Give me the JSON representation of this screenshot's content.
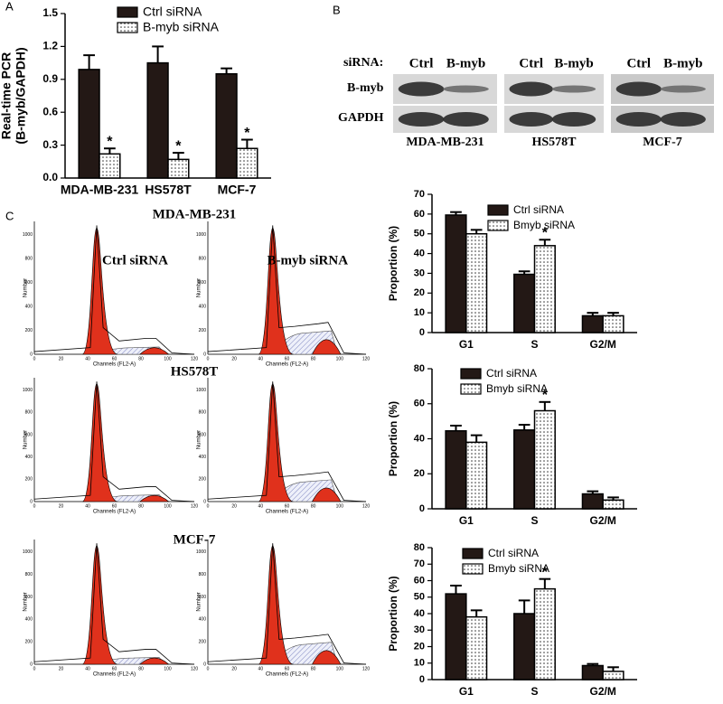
{
  "panel_labels": [
    "A",
    "B",
    "C"
  ],
  "chart_data": [
    {
      "type": "bar",
      "y_label": [
        "Real-time PCR",
        "(B-myb/GAPDH)"
      ],
      "categories": [
        "MDA-MB-231",
        "HS578T",
        "MCF-7"
      ],
      "ylim": [
        0,
        1.5
      ],
      "yticks": [
        {
          "value": 0,
          "label": "0.0"
        },
        0.3,
        0.6,
        0.9,
        1.2,
        {
          "value": 1.5,
          "label": "1.5"
        }
      ],
      "legend": "top",
      "series": [
        {
          "name": "Ctrl siRNA",
          "color": "#231815",
          "values": [
            0.99,
            1.05,
            0.95
          ],
          "errors": [
            0.13,
            0.15,
            0.05
          ]
        },
        {
          "name": "B-myb siRNA",
          "color": "dotted",
          "values": [
            0.22,
            0.17,
            0.27
          ],
          "errors": [
            0.05,
            0.06,
            0.08
          ],
          "markers": [
            "*",
            "*",
            "*"
          ]
        }
      ]
    },
    {
      "type": "bar",
      "y_label": [
        "Proportion (%)"
      ],
      "categories": [
        "G1",
        "S",
        "G2/M"
      ],
      "ylim": [
        0,
        70
      ],
      "yticks": [
        0,
        10,
        20,
        30,
        40,
        50,
        60,
        70
      ],
      "legend": "top",
      "series": [
        {
          "name": "Ctrl siRNA",
          "color": "#231815",
          "values": [
            59.5,
            29.5,
            8.5
          ],
          "errors": [
            1.5,
            1.5,
            1.5
          ]
        },
        {
          "name": "Bmyb siRNA",
          "color": "dotted",
          "values": [
            50,
            44,
            8.5
          ],
          "errors": [
            2,
            3,
            1.5
          ],
          "markers": [
            null,
            "*",
            null
          ]
        }
      ]
    },
    {
      "type": "bar",
      "y_label": [
        "Proportion (%)"
      ],
      "categories": [
        "G1",
        "S",
        "G2/M"
      ],
      "ylim": [
        0,
        80
      ],
      "yticks": [
        0,
        20,
        40,
        60,
        80
      ],
      "legend": "top",
      "series": [
        {
          "name": "Ctrl siRNA",
          "color": "#231815",
          "values": [
            44.5,
            45,
            8.5
          ],
          "errors": [
            3,
            3,
            1.5
          ]
        },
        {
          "name": "Bmyb siRNA",
          "color": "dotted",
          "values": [
            38,
            56,
            5
          ],
          "errors": [
            4,
            5,
            1.5
          ],
          "markers": [
            null,
            "*",
            null
          ]
        }
      ]
    },
    {
      "type": "bar",
      "y_label": [
        "Proportion (%)"
      ],
      "categories": [
        "G1",
        "S",
        "G2/M"
      ],
      "ylim": [
        0,
        80
      ],
      "yticks": [
        0,
        10,
        20,
        30,
        40,
        50,
        60,
        70,
        80
      ],
      "legend": "top",
      "series": [
        {
          "name": "Ctrl siRNA",
          "color": "#231815",
          "values": [
            52,
            40,
            8.5
          ],
          "errors": [
            5,
            8,
            1
          ]
        },
        {
          "name": "Bmyb siRNA",
          "color": "dotted",
          "values": [
            38,
            55,
            5
          ],
          "errors": [
            4,
            6,
            2.5
          ],
          "markers": [
            null,
            "*",
            null
          ]
        }
      ]
    }
  ],
  "blot": {
    "row_header": "siRNA:",
    "lanes": [
      "Ctrl",
      "B-myb"
    ],
    "rows": [
      "B-myb",
      "GAPDH"
    ],
    "cells": [
      "MDA-MB-231",
      "HS578T",
      "MCF-7"
    ]
  },
  "flow": {
    "rows": [
      "MDA-MB-231",
      "HS578T",
      "MCF-7"
    ],
    "conditions": [
      "Ctrl siRNA",
      "B-myb siRNA"
    ],
    "x_label": "Channels (FL2-A)",
    "y_label": "Number",
    "xticks": [
      0,
      20,
      40,
      60,
      80,
      100,
      120
    ],
    "yticks": [
      0,
      200,
      400,
      600,
      800,
      1000
    ]
  }
}
